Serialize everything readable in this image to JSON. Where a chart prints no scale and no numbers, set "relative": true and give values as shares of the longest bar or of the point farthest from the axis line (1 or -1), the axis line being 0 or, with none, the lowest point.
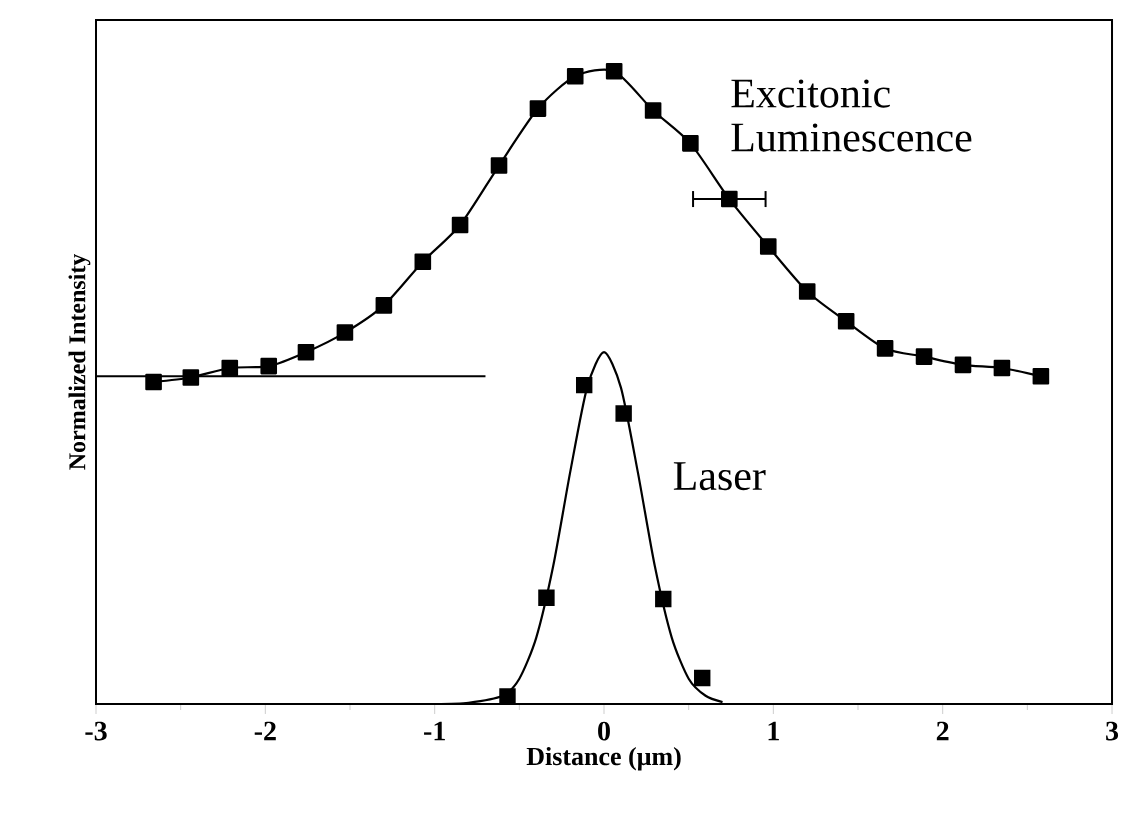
{
  "chart_data": {
    "type": "line",
    "xlabel": "Distance (μm)",
    "ylabel": "Normalized Intensity",
    "relative": true,
    "xlim": [
      -3,
      3
    ],
    "xticks": [
      -3,
      -2,
      -1,
      0,
      1,
      2,
      3
    ],
    "marker": "square",
    "line_style": "solid",
    "series": [
      {
        "name": "Excitonic Luminescence",
        "color": "#000000",
        "x": [
          -2.66,
          -2.44,
          -2.21,
          -1.98,
          -1.76,
          -1.53,
          -1.3,
          -1.07,
          -0.85,
          -0.62,
          -0.39,
          -0.17,
          0.06,
          0.29,
          0.51,
          0.74,
          0.97,
          1.2,
          1.43,
          1.66,
          1.89,
          2.12,
          2.35,
          2.58
        ],
        "values": [
          0.509,
          0.516,
          0.531,
          0.534,
          0.556,
          0.587,
          0.63,
          0.699,
          0.757,
          0.851,
          0.941,
          0.992,
          1.0,
          0.938,
          0.886,
          0.798,
          0.723,
          0.652,
          0.605,
          0.562,
          0.549,
          0.536,
          0.531,
          0.518
        ],
        "xerrors": [
          null,
          null,
          null,
          null,
          null,
          null,
          null,
          null,
          null,
          null,
          null,
          null,
          null,
          null,
          null,
          0.22,
          null,
          null,
          null,
          null,
          null,
          null,
          null,
          null
        ]
      },
      {
        "color": "#000000",
        "marker": "none",
        "x": [
          -3,
          -0.7
        ],
        "values": [
          0.518,
          0.518
        ]
      },
      {
        "name": "Laser",
        "type": "scatter",
        "color": "#000000",
        "x": [
          -0.57,
          -0.34,
          -0.117,
          0.116,
          0.35,
          0.58
        ],
        "values": [
          0.012,
          0.168,
          0.504,
          0.459,
          0.166,
          0.041
        ]
      },
      {
        "color": "#000000",
        "marker": "none",
        "x": [
          -1.0,
          -0.8,
          -0.6,
          -0.5,
          -0.4,
          -0.3,
          -0.2,
          -0.1,
          0.0,
          0.1,
          0.2,
          0.3,
          0.4,
          0.5,
          0.6,
          0.7
        ],
        "values": [
          0.0,
          0.002,
          0.013,
          0.04,
          0.105,
          0.218,
          0.366,
          0.5,
          0.556,
          0.5,
          0.366,
          0.218,
          0.105,
          0.04,
          0.013,
          0.003
        ]
      }
    ]
  }
}
